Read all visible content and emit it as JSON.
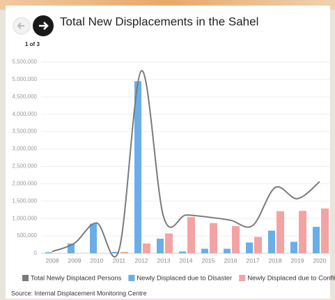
{
  "pager": "1 of 3",
  "chart_data": {
    "type": "bar-line",
    "title": "Total New Displacements in the Sahel",
    "source": "Source: Internal Displacement Monitoring Centre",
    "categories": [
      "2008",
      "2009",
      "2010",
      "2011",
      "2012",
      "2013",
      "2014",
      "2015",
      "2016",
      "2017",
      "2018",
      "2019",
      "2020"
    ],
    "series": [
      {
        "name": "Total Newly Displaced Persons",
        "color": "#7a7a7a",
        "kind": "line",
        "values": [
          50000,
          290000,
          870000,
          100000,
          5250000,
          1040000,
          1100000,
          1040000,
          950000,
          800000,
          1890000,
          1570000,
          2060000
        ]
      },
      {
        "name": "Newly Displaced due to Disaster",
        "color": "#6aaee8",
        "kind": "bar",
        "values": [
          30000,
          280000,
          850000,
          40000,
          4950000,
          420000,
          50000,
          130000,
          130000,
          310000,
          650000,
          330000,
          760000
        ]
      },
      {
        "name": "Newly Displaced due to Conflict",
        "color": "#f4a3a3",
        "kind": "bar",
        "values": [
          0,
          0,
          0,
          40000,
          280000,
          570000,
          1040000,
          870000,
          780000,
          470000,
          1210000,
          1220000,
          1290000
        ]
      }
    ],
    "ylim": [
      0,
      5500000
    ],
    "yticks": [
      0,
      {
        "value": 500000,
        "label": "500,000"
      },
      {
        "value": 1000000,
        "label": "1,000,000"
      },
      {
        "value": 1500000,
        "label": "1,500,000"
      },
      {
        "value": 2000000,
        "label": "2,000,000"
      },
      {
        "value": 2500000,
        "label": "2,500,000"
      },
      {
        "value": 3000000,
        "label": "3,000,000"
      },
      {
        "value": 3500000,
        "label": "3,500,000"
      },
      {
        "value": 4000000,
        "label": "4,000,000"
      },
      {
        "value": 4500000,
        "label": "4,500,000"
      },
      {
        "value": 5000000,
        "label": "5,000,000"
      },
      {
        "value": 5500000,
        "label": "5,500,000"
      }
    ],
    "grid": true
  }
}
